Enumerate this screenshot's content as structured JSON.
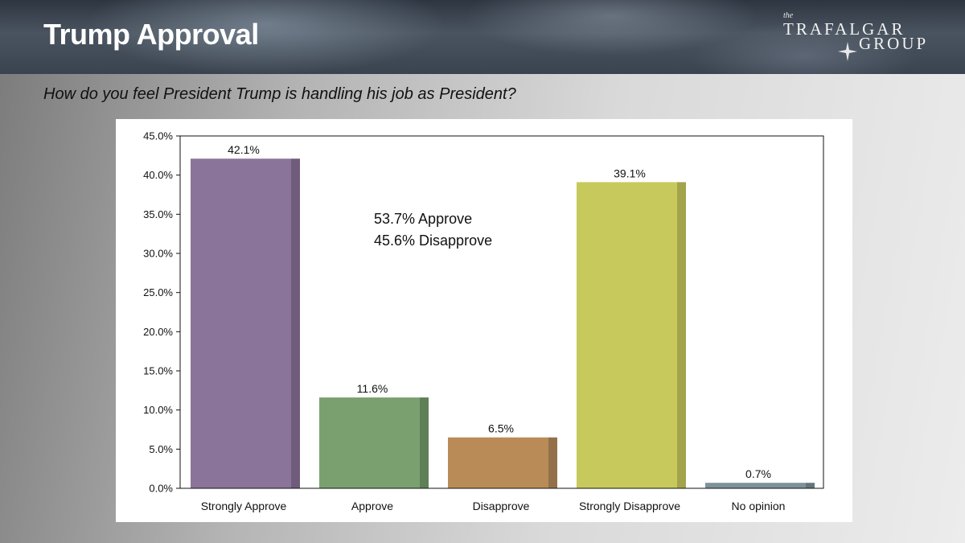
{
  "header": {
    "title": "Trump Approval"
  },
  "logo": {
    "the": "the",
    "line1": "TRAFALGAR",
    "line2": "GROUP"
  },
  "question": "How do you feel President Trump is handling his job as President?",
  "chart_data": {
    "type": "bar",
    "title": "",
    "xlabel": "",
    "ylabel": "",
    "categories": [
      "Strongly Approve",
      "Approve",
      "Disapprove",
      "Strongly Disapprove",
      "No opinion"
    ],
    "values": [
      42.1,
      11.6,
      6.5,
      39.1,
      0.7
    ],
    "value_labels": [
      "42.1%",
      "11.6%",
      "6.5%",
      "39.1%",
      "0.7%"
    ],
    "colors": [
      "#8b749a",
      "#7aa070",
      "#b98c57",
      "#c7c95c",
      "#7e929a"
    ],
    "shade_colors": [
      "#6f5c7c",
      "#5f7f56",
      "#94704a",
      "#a3a34b",
      "#63767c"
    ],
    "ylim": [
      0,
      45
    ],
    "yticks": [
      0,
      5,
      10,
      15,
      20,
      25,
      30,
      35,
      40,
      45
    ],
    "ytick_labels": [
      "0.0%",
      "5.0%",
      "10.0%",
      "15.0%",
      "20.0%",
      "25.0%",
      "30.0%",
      "35.0%",
      "40.0%",
      "45.0%"
    ],
    "annotations": [
      "53.7% Approve",
      "45.6% Disapprove"
    ],
    "grid": false,
    "legend": "none"
  }
}
